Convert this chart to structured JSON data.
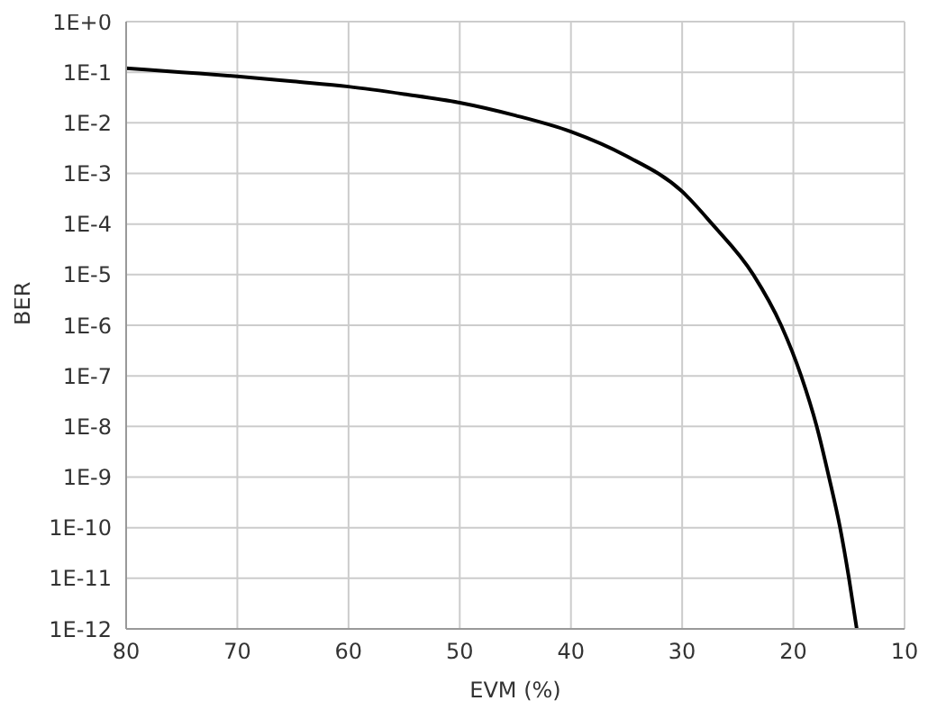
{
  "chart_data": {
    "type": "line",
    "xlabel": "EVM (%)",
    "ylabel": "BER",
    "x": [
      80,
      75,
      70,
      65,
      60,
      55,
      50,
      45,
      40,
      35,
      30,
      27.3,
      23.6,
      21.1,
      19.3,
      17.9,
      16.8,
      15.8,
      15.0,
      14.3
    ],
    "series": [
      {
        "color": "#000000",
        "values": [
          0.12,
          0.1,
          0.083,
          0.066,
          0.052,
          0.037,
          0.025,
          0.014,
          0.0067,
          0.0022,
          0.00044,
          0.0001,
          1e-05,
          1e-06,
          1e-07,
          1e-08,
          1e-09,
          1e-10,
          1e-11,
          1e-12
        ]
      }
    ],
    "xlim": [
      80,
      10
    ],
    "xticks": [
      80,
      70,
      60,
      50,
      40,
      30,
      20,
      10
    ],
    "ylim": [
      1e-12,
      1
    ],
    "yticks": [
      {
        "value": 1e-12,
        "label": "1E-12"
      },
      {
        "value": 1e-11,
        "label": "1E-11"
      },
      {
        "value": 1e-10,
        "label": "1E-10"
      },
      {
        "value": 1e-09,
        "label": "1E-9"
      },
      {
        "value": 1e-08,
        "label": "1E-8"
      },
      {
        "value": 1e-07,
        "label": "1E-7"
      },
      {
        "value": 1e-06,
        "label": "1E-6"
      },
      {
        "value": 1e-05,
        "label": "1E-5"
      },
      {
        "value": 0.0001,
        "label": "1E-4"
      },
      {
        "value": 0.001,
        "label": "1E-3"
      },
      {
        "value": 0.01,
        "label": "1E-2"
      },
      {
        "value": 0.1,
        "label": "1E-1"
      },
      {
        "value": 1,
        "label": "1E+0"
      }
    ],
    "log": "y",
    "grid": true,
    "marker": "none",
    "line_style": "solid",
    "legend": false
  }
}
